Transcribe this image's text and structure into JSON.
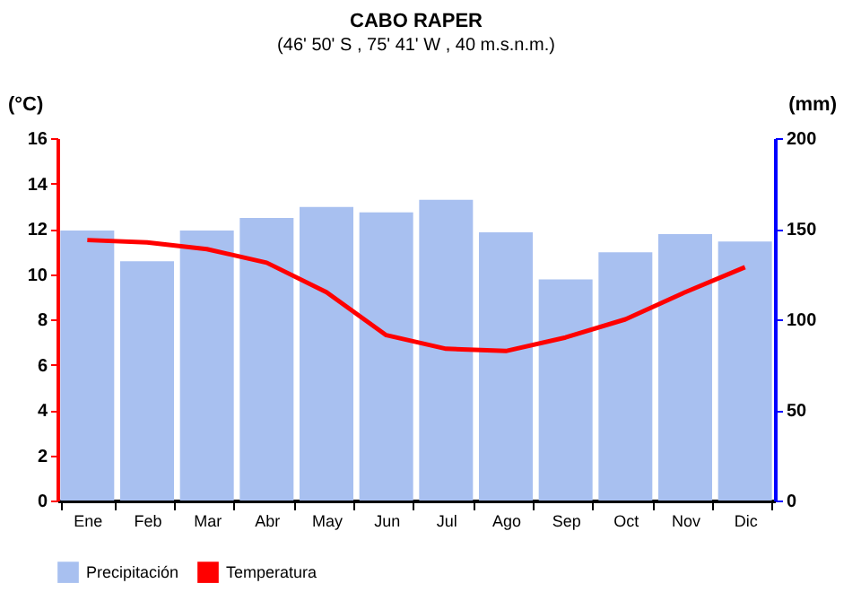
{
  "chart_data": {
    "type": "bar",
    "title": "CABO RAPER",
    "subtitle": "(46' 50' S , 75' 41' W , 40 m.s.n.m.)",
    "categories": [
      "Ene",
      "Feb",
      "Mar",
      "Abr",
      "May",
      "Jun",
      "Jul",
      "Ago",
      "Sep",
      "Oct",
      "Nov",
      "Dic"
    ],
    "series": [
      {
        "name": "Precipitación",
        "type": "bar",
        "axis": "y2",
        "color": "#a8c0f0",
        "values": [
          149,
          132,
          149,
          156,
          162,
          159,
          166,
          148,
          122,
          137,
          147,
          143
        ]
      },
      {
        "name": "Temperatura",
        "type": "line",
        "color": "#ff0000",
        "values": [
          11.5,
          11.4,
          11.1,
          10.5,
          9.2,
          7.3,
          6.7,
          6.6,
          7.2,
          8.0,
          9.2,
          10.3
        ]
      }
    ],
    "ylabel": "(°C)",
    "y2label": "(mm)",
    "ylim": [
      0,
      16
    ],
    "yticks": [
      0,
      2,
      4,
      6,
      8,
      10,
      12,
      14,
      16
    ],
    "y2lim": [
      0,
      200
    ],
    "y2ticks": [
      0,
      50,
      100,
      150,
      200
    ],
    "legend": "bottom"
  }
}
